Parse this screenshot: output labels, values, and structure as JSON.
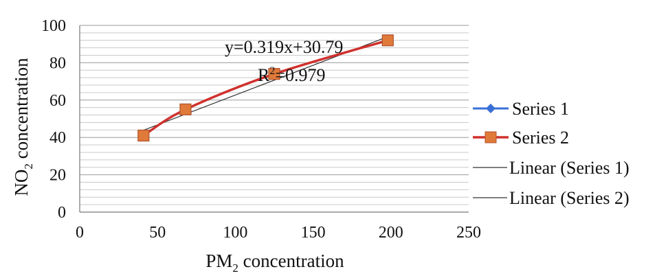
{
  "chart_data": {
    "type": "line",
    "xlabel_main": "PM",
    "xlabel_sub": "2",
    "xlabel_rest": " concentration",
    "ylabel_main": "NO",
    "ylabel_sub": "2",
    "ylabel_rest": " concentration",
    "xlim": [
      0,
      250
    ],
    "ylim": [
      0,
      100
    ],
    "x_ticks": [
      "0",
      "50",
      "100",
      "150",
      "200",
      "250"
    ],
    "y_ticks": [
      "0",
      "20",
      "40",
      "60",
      "80",
      "100"
    ],
    "grid": true,
    "legend_position": "right",
    "series": [
      {
        "name": "Series 1",
        "color": "#3a6fd8",
        "marker": "diamond",
        "x": [],
        "y": []
      },
      {
        "name": "Series 2",
        "color": "#d0312d",
        "marker": "square",
        "marker_fill": "#e07a3a",
        "x": [
          41,
          68,
          125,
          198
        ],
        "y": [
          41,
          55,
          74,
          92
        ]
      },
      {
        "name": "Linear (Series 1)",
        "color": "#333333",
        "type": "trendline"
      },
      {
        "name": "Linear (Series 2)",
        "color": "#333333",
        "type": "trendline"
      }
    ],
    "trendline": {
      "slope": 0.319,
      "intercept": 30.79,
      "x_range": [
        41,
        198
      ]
    },
    "annotations": {
      "equation": "y=0.319x+30.79",
      "r2_main": "R",
      "r2_sup": "2",
      "r2_rest": "=0.979"
    }
  }
}
